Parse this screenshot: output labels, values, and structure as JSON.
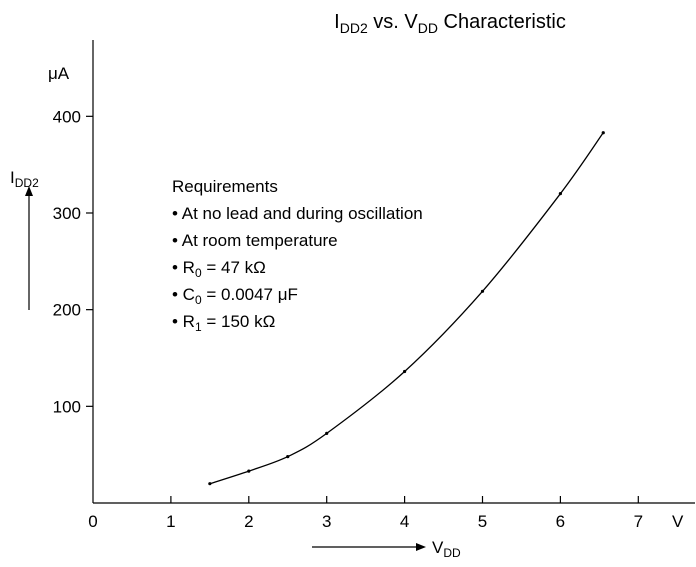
{
  "chart_data": {
    "type": "line",
    "title": {
      "main": "I",
      "main_sub": "DD2",
      "rest": " vs. V",
      "rest_sub": "DD",
      "tail": " Characteristic"
    },
    "xlabel": {
      "main": "V",
      "sub": "DD"
    },
    "xunit": "V",
    "ylabel": {
      "main": "I",
      "sub": "DD2"
    },
    "yunit": "μA",
    "xlim": [
      0,
      7.5
    ],
    "ylim": [
      0,
      430
    ],
    "xticks": [
      {
        "value": 0,
        "label": "0"
      },
      {
        "value": 1,
        "label": "1"
      },
      {
        "value": 2,
        "label": "2"
      },
      {
        "value": 3,
        "label": "3"
      },
      {
        "value": 4,
        "label": "4"
      },
      {
        "value": 5,
        "label": "5"
      },
      {
        "value": 6,
        "label": "6"
      },
      {
        "value": 7,
        "label": "7"
      }
    ],
    "yticks": [
      {
        "value": 100,
        "label": "100"
      },
      {
        "value": 200,
        "label": "200"
      },
      {
        "value": 300,
        "label": "300"
      },
      {
        "value": 400,
        "label": "400"
      }
    ],
    "grid": false,
    "series": [
      {
        "x": [
          1.5,
          2.0,
          2.5,
          3.0,
          4.0,
          5.0,
          6.0,
          6.55
        ],
        "y": [
          20,
          33,
          48,
          72,
          136,
          219,
          320,
          383
        ]
      }
    ],
    "annotation": {
      "heading": "Requirements",
      "items": [
        {
          "main": "• At no lead and during oscillation",
          "sub": "",
          "tail": ""
        },
        {
          "main": "• At room temperature",
          "sub": "",
          "tail": ""
        },
        {
          "main": "• R",
          "sub": "0",
          "tail": " = 47 kΩ"
        },
        {
          "main": "• C",
          "sub": "0",
          "tail": " = 0.0047 μF"
        },
        {
          "main": "• R",
          "sub": "1",
          "tail": " = 150 kΩ"
        }
      ]
    }
  }
}
